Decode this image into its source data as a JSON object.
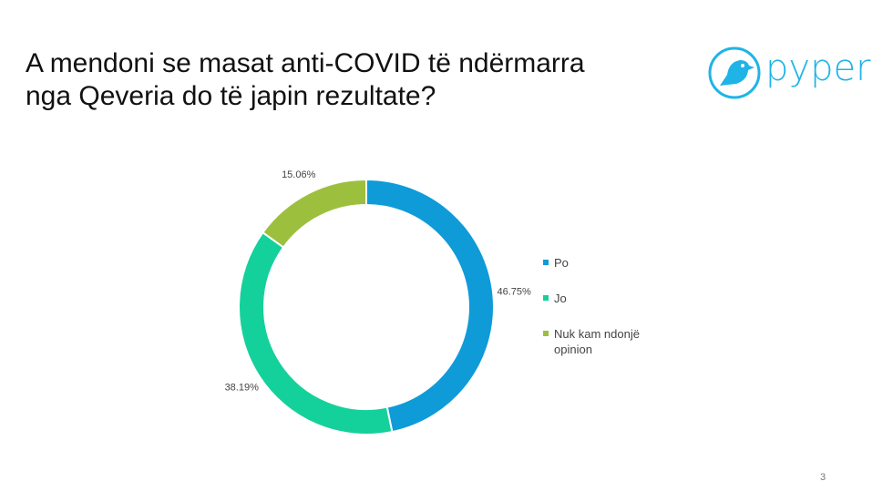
{
  "header": {
    "logo_text": "pyper"
  },
  "page_number": "3",
  "chart_data": {
    "type": "donut",
    "title": "A mendoni se masat anti-COVID të ndërmarra nga Qeveria do të japin rezultate?",
    "categories": [
      "Po",
      "Jo",
      "Nuk kam ndonjë opinion"
    ],
    "values": [
      46.75,
      38.19,
      15.06
    ],
    "value_labels": [
      "46.75%",
      "38.19%",
      "15.06%"
    ],
    "colors": [
      "#0e9bd8",
      "#14d19b",
      "#9cc03e"
    ],
    "legend": "right"
  }
}
